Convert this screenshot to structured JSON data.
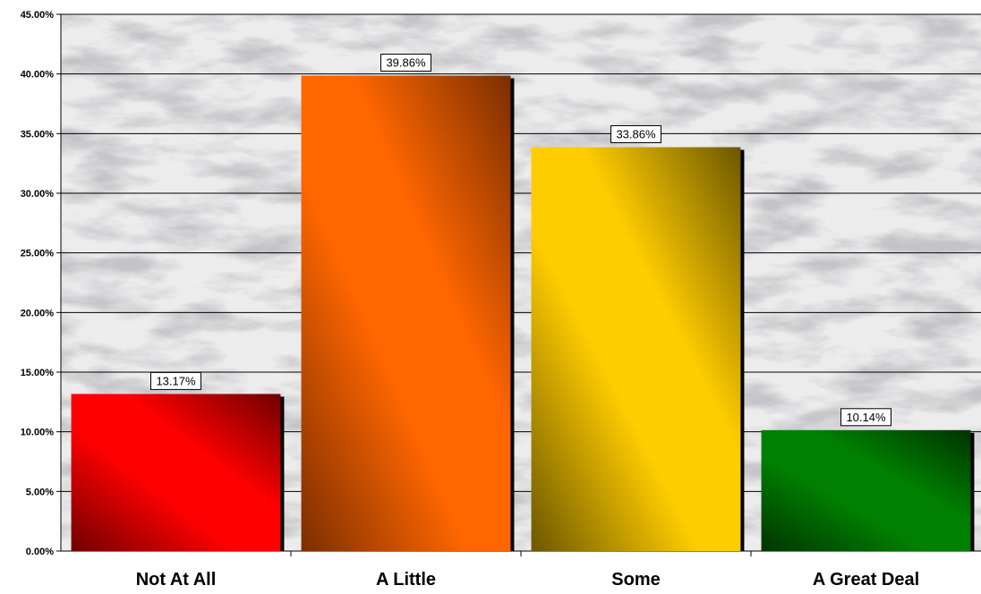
{
  "chart_data": {
    "type": "bar",
    "title": "",
    "xlabel": "",
    "ylabel": "",
    "categories": [
      "Not At All",
      "A Little",
      "Some",
      "A Great Deal"
    ],
    "values": [
      13.17,
      39.86,
      33.86,
      10.14
    ],
    "value_labels": [
      "13.17%",
      "39.86%",
      "33.86%",
      "10.14%"
    ],
    "ylim": [
      0,
      45
    ],
    "yticks": [
      0,
      5,
      10,
      15,
      20,
      25,
      30,
      35,
      40,
      45
    ],
    "ytick_labels": [
      "0.00%",
      "5.00%",
      "10.00%",
      "15.00%",
      "20.00%",
      "25.00%",
      "30.00%",
      "35.00%",
      "40.00%",
      "45.00%"
    ],
    "grid": true,
    "legend": "none",
    "bar_colors": [
      "#ff0000",
      "#ff6600",
      "#ffcc00",
      "#008000"
    ],
    "bar_shade_colors": [
      "#6e0000",
      "#7a2e00",
      "#6b5600",
      "#003300"
    ]
  }
}
